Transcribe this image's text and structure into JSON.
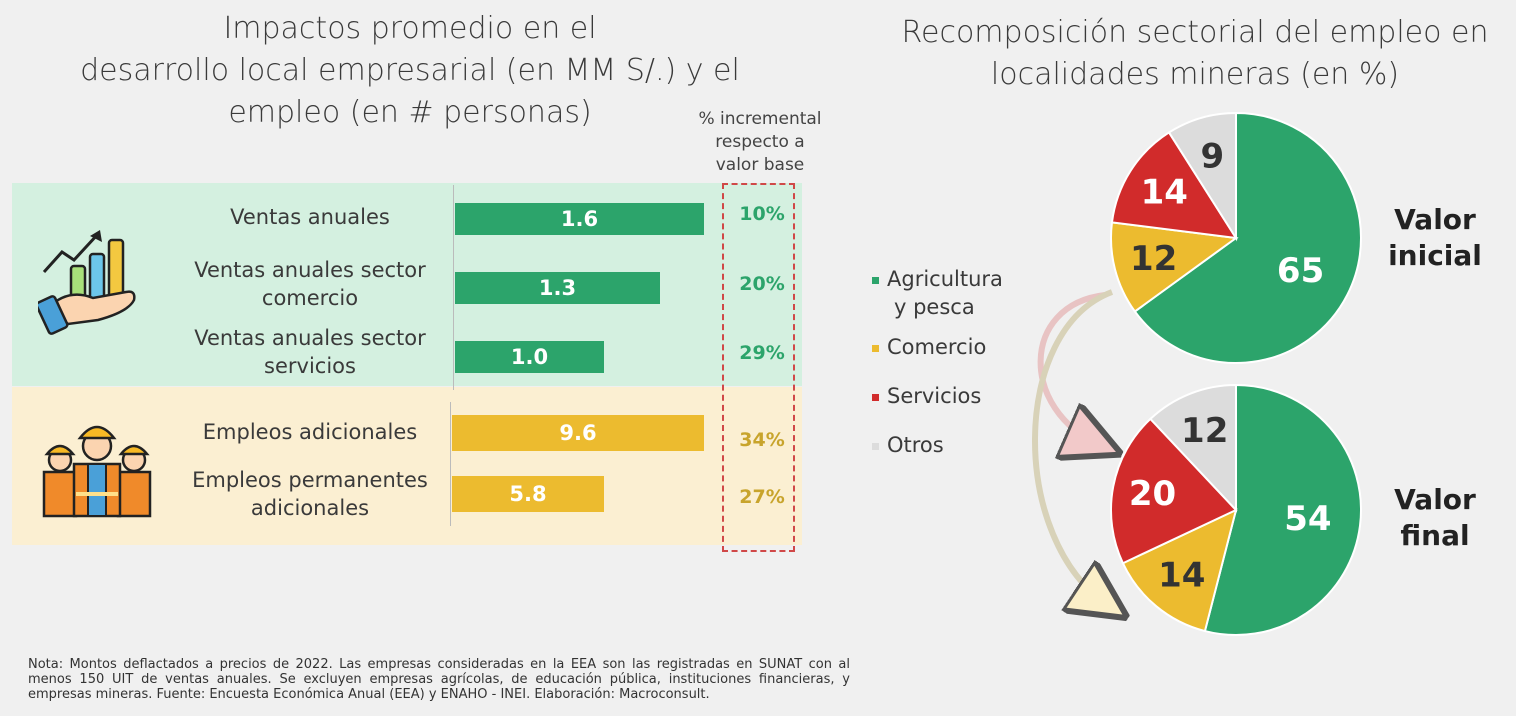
{
  "left_title": {
    "line1": "Impactos promedio en el",
    "line2": "desarrollo local empresarial (en MM S/.) y el",
    "line3": "empleo (en # personas)"
  },
  "incremental_header": {
    "line1": "% incremental",
    "line2": "respecto a",
    "line3": "valor base"
  },
  "right_title": {
    "line1": "Recomposición sectorial del empleo en",
    "line2": "localidades mineras (en %)"
  },
  "impact_rows": [
    {
      "label_lines": [
        "Ventas anuales"
      ],
      "value_label": "1.6",
      "pct": "10%"
    },
    {
      "label_lines": [
        "Ventas anuales sector",
        "comercio"
      ],
      "value_label": "1.3",
      "pct": "20%"
    },
    {
      "label_lines": [
        "Ventas anuales sector",
        "servicios"
      ],
      "value_label": "1.0",
      "pct": "29%"
    },
    {
      "label_lines": [
        "Empleos adicionales"
      ],
      "value_label": "9.6",
      "pct": "34%"
    },
    {
      "label_lines": [
        "Empleos permanentes",
        "adicionales"
      ],
      "value_label": "5.8",
      "pct": "27%"
    }
  ],
  "legend": [
    {
      "label_lines": [
        "Agricultura",
        "y pesca"
      ],
      "color": "#2ca46b"
    },
    {
      "label_lines": [
        "Comercio"
      ],
      "color": "#ecbb2f"
    },
    {
      "label_lines": [
        "Servicios"
      ],
      "color": "#d12b2b"
    },
    {
      "label_lines": [
        "Otros"
      ],
      "color": "#dcdcdc"
    }
  ],
  "pie_labels": {
    "initial": [
      "Valor",
      "inicial"
    ],
    "final": [
      "Valor",
      "final"
    ]
  },
  "note": "Nota: Montos deflactados a precios de 2022. Las empresas consideradas en la EEA son las registradas en SUNAT con al menos 150 UIT de ventas anuales. Se excluyen empresas agrícolas, de educación pública, instituciones financieras, y empresas mineras. Fuente: Encuesta Económica Anual (EEA) y ENAHO - INEI. Elaboración: Macroconsult.",
  "colors": {
    "green": "#2ca46b",
    "yellow": "#ecbb2f",
    "red": "#d12b2b",
    "grey": "#dcdcdc",
    "pct_green": "#2ca46b",
    "pct_yellow": "#c8a42c"
  },
  "icons": {
    "sales": "hand-growth-chart-icon",
    "employment": "construction-workers-icon"
  },
  "chart_data": [
    {
      "type": "bar",
      "orientation": "horizontal",
      "categories": [
        "Ventas anuales",
        "Ventas anuales sector comercio",
        "Ventas anuales sector servicios"
      ],
      "values": [
        1.6,
        1.3,
        1.0
      ],
      "pct_incremental": [
        10,
        20,
        29
      ]
    },
    {
      "type": "bar",
      "orientation": "horizontal",
      "categories": [
        "Empleos adicionales",
        "Empleos permanentes adicionales"
      ],
      "values": [
        9.6,
        5.8
      ],
      "pct_incremental": [
        34,
        27
      ]
    },
    {
      "type": "pie",
      "categories": [
        "Agricultura y pesca",
        "Comercio",
        "Servicios",
        "Otros"
      ],
      "values": [
        65,
        12,
        14,
        9
      ]
    },
    {
      "type": "pie",
      "categories": [
        "Agricultura y pesca",
        "Comercio",
        "Servicios",
        "Otros"
      ],
      "values": [
        54,
        14,
        20,
        12
      ]
    }
  ]
}
